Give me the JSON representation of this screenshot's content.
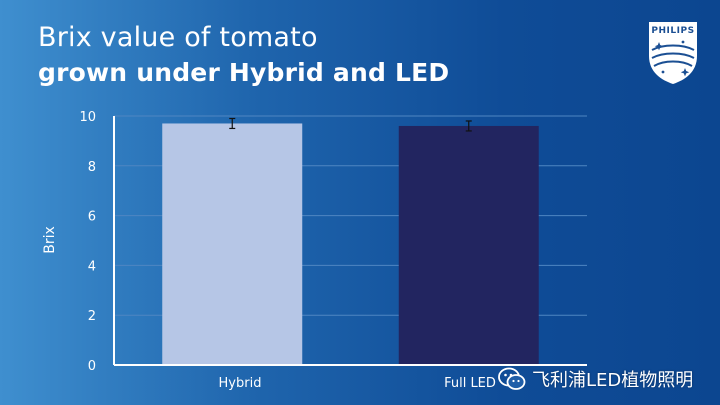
{
  "title": {
    "line1": "Brix value of tomato",
    "line2": "grown under Hybrid and LED"
  },
  "logo": {
    "wordmark": "PHILIPS"
  },
  "watermark": {
    "text": "飞利浦LED植物照明",
    "icon": "wechat-icon"
  },
  "colors": {
    "hybrid_bar": "#b6c6e6",
    "led_bar": "#222560",
    "axis": "#ffffff",
    "grid": "#4f86c2"
  },
  "chart_data": {
    "type": "bar",
    "categories": [
      "Hybrid",
      "Full LED"
    ],
    "values": [
      9.7,
      9.6
    ],
    "error": [
      0.2,
      0.2
    ],
    "title": "Brix value of tomato grown under Hybrid and LED",
    "xlabel": "",
    "ylabel": "Brix",
    "ylim": [
      0,
      10
    ],
    "yticks": [
      0,
      2,
      4,
      6,
      8,
      10
    ],
    "grid": true
  }
}
